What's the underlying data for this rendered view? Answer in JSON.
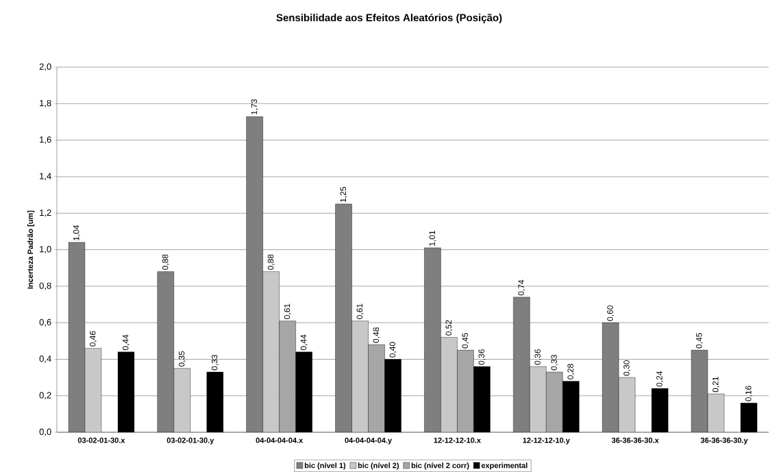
{
  "chart_data": {
    "type": "bar",
    "title": "Sensibilidade aos Efeitos Aleatórios (Posição)",
    "ylabel": "Incerteza Padrão [um]",
    "categories": [
      "03-02-01-30.x",
      "03-02-01-30.y",
      "04-04-04-04.x",
      "04-04-04-04.y",
      "12-12-12-10.x",
      "12-12-12-10.y",
      "36-36-36-30.x",
      "36-36-36-30.y"
    ],
    "series": [
      {
        "name": "bic (nível 1)",
        "color": "#7f7f7f",
        "values": [
          1.04,
          0.88,
          1.73,
          1.25,
          1.01,
          0.74,
          0.6,
          0.45
        ],
        "value_labels": [
          "1,04",
          "0,88",
          "1,73",
          "1,25",
          "1,01",
          "0,74",
          "0,60",
          "0,45"
        ]
      },
      {
        "name": "bic (nível 2)",
        "color": "#c8c8c8",
        "values": [
          0.46,
          0.35,
          0.88,
          0.61,
          0.52,
          0.36,
          0.3,
          0.21
        ],
        "value_labels": [
          "0,46",
          "0,35",
          "0,88",
          "0,61",
          "0,52",
          "0,36",
          "0,30",
          "0,21"
        ]
      },
      {
        "name": "bic (nível 2 corr)",
        "color": "#a6a6a6",
        "values": [
          null,
          null,
          0.61,
          0.48,
          0.45,
          0.33,
          null,
          null
        ],
        "value_labels": [
          null,
          null,
          "0,61",
          "0,48",
          "0,45",
          "0,33",
          null,
          null
        ]
      },
      {
        "name": "experimental",
        "color": "#000000",
        "values": [
          0.44,
          0.33,
          0.44,
          0.4,
          0.36,
          0.28,
          0.24,
          0.16
        ],
        "value_labels": [
          "0,44",
          "0,33",
          "0,44",
          "0,40",
          "0,36",
          "0,28",
          "0,24",
          "0,16"
        ]
      }
    ],
    "ylim": [
      0,
      2.0
    ],
    "yticks": [
      {
        "value": 0,
        "label": "0,0"
      },
      {
        "value": 0.2,
        "label": "0,2"
      },
      {
        "value": 0.4,
        "label": "0,4"
      },
      {
        "value": 0.6,
        "label": "0,6"
      },
      {
        "value": 0.8,
        "label": "0,8"
      },
      {
        "value": 1.0,
        "label": "1,0"
      },
      {
        "value": 1.2,
        "label": "1,2"
      },
      {
        "value": 1.4,
        "label": "1,4"
      },
      {
        "value": 1.6,
        "label": "1,6"
      },
      {
        "value": 1.8,
        "label": "1,8"
      },
      {
        "value": 2.0,
        "label": "2,0"
      }
    ],
    "grid": "y",
    "legend": "bottom"
  }
}
